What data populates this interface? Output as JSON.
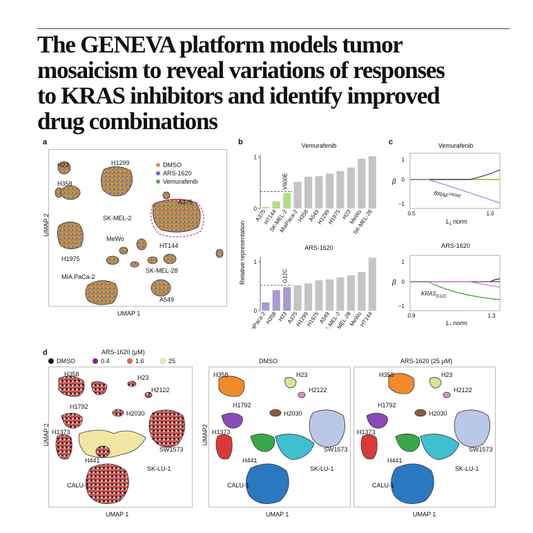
{
  "title_lines": [
    "The GENEVA platform models tumor",
    "mosaicism to reveal variations of responses",
    "to KRAS inhibitors and identify improved",
    "drug combinations"
  ],
  "panels": {
    "a": {
      "label": "a",
      "xlabel": "UMAP 1",
      "ylabel": "UMAP 2",
      "legend": [
        {
          "name": "DMSO",
          "color": "#f08a3c"
        },
        {
          "name": "ARS-1620",
          "color": "#6a6fb8"
        },
        {
          "name": "Vemurafenib",
          "color": "#5aa84a"
        }
      ],
      "cluster_labels": [
        "H23",
        "H1299",
        "H358",
        "A375",
        "SK-MEL-2",
        "MeWo",
        "HT144",
        "H1975",
        "SK-MEL-28",
        "MIA PaCa-2",
        "A549"
      ]
    },
    "b": {
      "label": "b",
      "ylabel": "Relative representation"
    },
    "c": {
      "label": "c",
      "top": {
        "title": "Vemurafenib",
        "ylabel": "β",
        "xlabel": "L1 norm",
        "xticks": [
          "0.5",
          "1.0"
        ],
        "yticks": [
          "1",
          "0",
          "−1"
        ],
        "annotation": "BRAF",
        "annotation_sup": "V600E"
      },
      "bottom": {
        "title": "ARS-1620",
        "ylabel": "β",
        "xlabel": "L1 norm",
        "xticks": [
          "0.9",
          "1.3"
        ],
        "yticks": [
          "1",
          "0",
          "−1"
        ],
        "annotation": "KRAS",
        "annotation_sup": "G12C"
      }
    },
    "d": {
      "label": "d",
      "legend_title": "ARS-1620 (μM)",
      "legend": [
        {
          "name": "DMSO",
          "color": "#111111"
        },
        {
          "name": "0.4",
          "color": "#7a2a8a"
        },
        {
          "name": "1.6",
          "color": "#e45f5f"
        },
        {
          "name": "25",
          "color": "#f2e6a4"
        }
      ],
      "plot1": {
        "xlabel": "UMAP 1",
        "ylabel": "UMAP 2"
      },
      "plot2": {
        "title": "DMSO",
        "xlabel": "UMAP 1",
        "ylabel": "UMAP2"
      },
      "plot3": {
        "title": "ARS-1620 (25 μM)",
        "xlabel": "UMAP 1"
      },
      "cluster_labels": [
        "H358",
        "H23",
        "H2122",
        "H1792",
        "H2030",
        "H1373",
        "SW1573",
        "H441",
        "SK-LU-1",
        "CALU-1"
      ]
    }
  },
  "chart_data": [
    {
      "type": "bar",
      "title": "Vemurafenib",
      "ylabel": "Relative representation",
      "categories": [
        "A375",
        "HT144",
        "SK-MEL-2",
        "MiaPaca-2",
        "H358",
        "A549",
        "H1299",
        "H1975",
        "H23",
        "MeWo",
        "SK-MEL-28"
      ],
      "values": [
        0.03,
        0.14,
        0.3,
        0.52,
        0.62,
        0.63,
        0.68,
        0.73,
        0.8,
        0.97,
        1.02
      ],
      "highlighted": [
        "A375",
        "HT144",
        "SK-MEL-2"
      ],
      "highlight_label": "V600E",
      "highlight_color": "#b5dc8a",
      "ylim": [
        0,
        1.05
      ],
      "yticks": [
        "0",
        "1"
      ],
      "reference_line": 0.33
    },
    {
      "type": "bar",
      "title": "ARS-1620",
      "ylabel": "Relative representation",
      "categories": [
        "MiaPaca-2",
        "H358",
        "H23",
        "A375",
        "H1299",
        "H1975",
        "A549",
        "SK-MEL-2",
        "SK-MEL-28",
        "MeWo",
        "HT144"
      ],
      "values": [
        0.17,
        0.42,
        0.48,
        0.52,
        0.56,
        0.62,
        0.64,
        0.68,
        0.72,
        0.79,
        1.08
      ],
      "highlighted": [
        "MiaPaca-2",
        "H358",
        "H23"
      ],
      "highlight_label": "G12C",
      "highlight_color": "#a89ad2",
      "ylim": [
        0,
        1.1
      ],
      "yticks": [
        "0",
        "1"
      ],
      "reference_line": 0.52
    }
  ]
}
